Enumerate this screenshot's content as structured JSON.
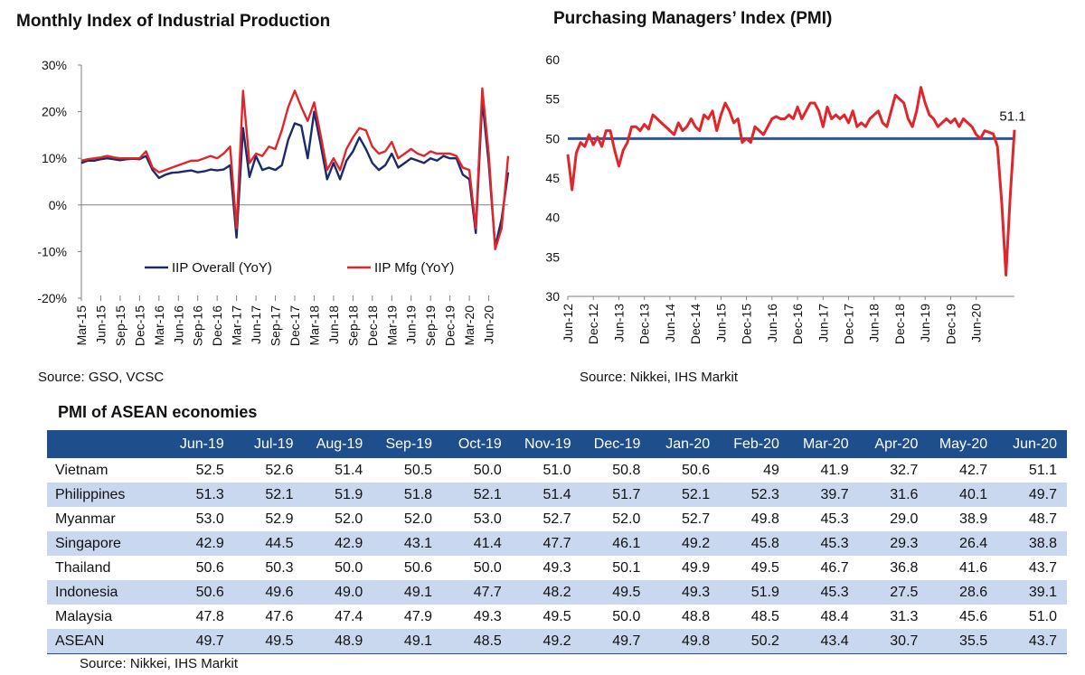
{
  "charts": {
    "iip": {
      "title": "Monthly Index of Industrial Production",
      "source": "Source: GSO, VCSC"
    },
    "pmi": {
      "title": "Purchasing Managers’ Index (PMI)",
      "source": "Source: Nikkei, IHS Markit",
      "last_label": "51.1"
    }
  },
  "table": {
    "title": "PMI of ASEAN economies",
    "source": "Source: Nikkei, IHS Markit",
    "columns": [
      "",
      "Jun-19",
      "Jul-19",
      "Aug-19",
      "Sep-19",
      "Oct-19",
      "Nov-19",
      "Dec-19",
      "Jan-20",
      "Feb-20",
      "Mar-20",
      "Apr-20",
      "May-20",
      "Jun-20"
    ],
    "rows": [
      [
        "Vietnam",
        "52.5",
        "52.6",
        "51.4",
        "50.5",
        "50.0",
        "51.0",
        "50.8",
        "50.6",
        "49",
        "41.9",
        "32.7",
        "42.7",
        "51.1"
      ],
      [
        "Philippines",
        "51.3",
        "52.1",
        "51.9",
        "51.8",
        "52.1",
        "51.4",
        "51.7",
        "52.1",
        "52.3",
        "39.7",
        "31.6",
        "40.1",
        "49.7"
      ],
      [
        "Myanmar",
        "53.0",
        "52.9",
        "52.0",
        "52.0",
        "53.0",
        "52.7",
        "52.0",
        "52.7",
        "49.8",
        "45.3",
        "29.0",
        "38.9",
        "48.7"
      ],
      [
        "Singapore",
        "42.9",
        "44.5",
        "42.9",
        "43.1",
        "41.4",
        "47.7",
        "46.1",
        "49.2",
        "45.8",
        "45.3",
        "29.3",
        "26.4",
        "38.8"
      ],
      [
        "Thailand",
        "50.6",
        "50.3",
        "50.0",
        "50.6",
        "50.0",
        "49.3",
        "50.1",
        "49.9",
        "49.5",
        "46.7",
        "36.8",
        "41.6",
        "43.7"
      ],
      [
        "Indonesia",
        "50.6",
        "49.6",
        "49.0",
        "49.1",
        "47.7",
        "48.2",
        "49.5",
        "49.3",
        "51.9",
        "45.3",
        "27.5",
        "28.6",
        "39.1"
      ],
      [
        "Malaysia",
        "47.8",
        "47.6",
        "47.4",
        "47.9",
        "49.3",
        "49.5",
        "50.0",
        "48.8",
        "48.5",
        "48.4",
        "31.3",
        "45.6",
        "51.0"
      ],
      [
        "ASEAN",
        "49.7",
        "49.5",
        "48.9",
        "49.1",
        "48.5",
        "49.2",
        "49.7",
        "49.8",
        "50.2",
        "43.4",
        "30.7",
        "35.5",
        "43.7"
      ]
    ]
  },
  "chart_data": [
    {
      "type": "line",
      "title": "Monthly Index of Industrial Production",
      "xlabel": "",
      "ylabel": "",
      "ylim": [
        -20,
        30
      ],
      "yticks": [
        "30%",
        "20%",
        "10%",
        "0%",
        "-10%",
        "-20%"
      ],
      "x_tick_labels": [
        "Mar-15",
        "Jun-15",
        "Sep-15",
        "Dec-15",
        "Mar-16",
        "Jun-16",
        "Sep-16",
        "Dec-16",
        "Mar-17",
        "Jun-17",
        "Sep-17",
        "Dec-17",
        "Mar-18",
        "Jun-18",
        "Sep-18",
        "Dec-18",
        "Mar-19",
        "Jun-19",
        "Sep-19",
        "Dec-19",
        "Mar-20",
        "Jun-20"
      ],
      "legend_position": "bottom-center",
      "colors": {
        "overall": "#1b2a6b",
        "mfg": "#e0262b",
        "axis": "#808080"
      },
      "series": [
        {
          "name": "IIP Overall (YoY)",
          "values": [
            9.0,
            9.5,
            9.5,
            9.8,
            10.0,
            9.8,
            9.6,
            9.8,
            9.9,
            9.8,
            10.5,
            7.5,
            5.8,
            6.5,
            6.9,
            7.0,
            7.2,
            7.4,
            7.0,
            7.2,
            7.6,
            7.4,
            7.6,
            8.5,
            -7.0,
            16.5,
            6.0,
            10.5,
            7.5,
            8.0,
            7.5,
            8.5,
            14.0,
            17.5,
            17.0,
            10.0,
            20.0,
            13.0,
            5.5,
            9.0,
            5.5,
            9.5,
            11.5,
            14.5,
            12.0,
            9.0,
            7.5,
            8.5,
            11.0,
            8.0,
            9.0,
            10.0,
            9.5,
            9.0,
            10.0,
            9.5,
            10.5,
            10.0,
            10.0,
            6.5,
            5.5,
            -6.0,
            22.5,
            9.0,
            -9.0,
            -3.0,
            7.0
          ]
        },
        {
          "name": "IIP Mfg (YoY)",
          "values": [
            9.5,
            9.8,
            10.0,
            10.2,
            10.5,
            10.2,
            10.0,
            10.0,
            10.0,
            10.0,
            11.5,
            8.0,
            7.0,
            7.5,
            8.0,
            8.5,
            9.0,
            9.5,
            9.5,
            10.0,
            10.5,
            10.0,
            11.0,
            12.5,
            -5.0,
            24.5,
            9.0,
            11.0,
            10.5,
            12.5,
            12.0,
            16.0,
            21.0,
            24.5,
            21.0,
            18.0,
            22.0,
            15.0,
            7.5,
            10.0,
            7.5,
            12.0,
            14.5,
            16.5,
            16.0,
            12.5,
            11.0,
            11.5,
            13.5,
            10.0,
            11.0,
            12.0,
            11.0,
            10.5,
            11.5,
            11.0,
            11.0,
            11.0,
            10.5,
            8.0,
            7.5,
            -5.0,
            25.0,
            11.0,
            -9.5,
            -5.0,
            10.5
          ]
        }
      ]
    },
    {
      "type": "line",
      "title": "Purchasing Managers’ Index (PMI)",
      "xlabel": "",
      "ylabel": "",
      "ylim": [
        30,
        60
      ],
      "yticks": [
        "60",
        "55",
        "50",
        "45",
        "40",
        "35",
        "30"
      ],
      "x_tick_labels": [
        "Jun-12",
        "Dec-12",
        "Jun-13",
        "Dec-13",
        "Jun-14",
        "Dec-14",
        "Jun-15",
        "Dec-15",
        "Jun-16",
        "Dec-16",
        "Jun-17",
        "Dec-17",
        "Jun-18",
        "Dec-18",
        "Jun-19",
        "Dec-19",
        "Jun-20"
      ],
      "reference_line": 50,
      "end_label": "51.1",
      "colors": {
        "line": "#e0262b",
        "reference": "#2e5597",
        "axis": "#808080"
      },
      "series": [
        {
          "name": "PMI",
          "values": [
            48.0,
            43.5,
            48.2,
            49.5,
            49.0,
            50.5,
            49.2,
            50.2,
            49.0,
            51.0,
            51.0,
            48.5,
            46.5,
            48.5,
            49.5,
            51.5,
            51.5,
            51.0,
            51.8,
            51.2,
            53.0,
            52.5,
            52.0,
            51.5,
            51.0,
            50.5,
            52.0,
            51.0,
            51.5,
            52.5,
            51.5,
            51.0,
            53.0,
            52.5,
            53.5,
            51.0,
            53.0,
            54.5,
            53.5,
            52.0,
            52.5,
            49.5,
            50.0,
            49.5,
            51.5,
            51.0,
            50.5,
            51.5,
            52.5,
            52.8,
            52.5,
            52.5,
            53.0,
            52.5,
            54.0,
            52.5,
            53.5,
            54.5,
            54.5,
            53.5,
            51.5,
            54.0,
            52.5,
            53.0,
            52.5,
            53.0,
            52.0,
            53.5,
            51.5,
            52.0,
            51.5,
            52.5,
            53.0,
            53.5,
            52.0,
            51.5,
            53.5,
            55.5,
            55.0,
            54.5,
            52.5,
            51.5,
            53.5,
            56.5,
            54.5,
            53.0,
            52.5,
            51.5,
            52.0,
            52.5,
            52.0,
            52.5,
            51.5,
            52.5,
            52.0,
            51.5,
            50.5,
            50.0,
            51.0,
            50.8,
            50.6,
            49.0,
            41.9,
            32.7,
            42.7,
            51.1
          ]
        }
      ]
    }
  ]
}
